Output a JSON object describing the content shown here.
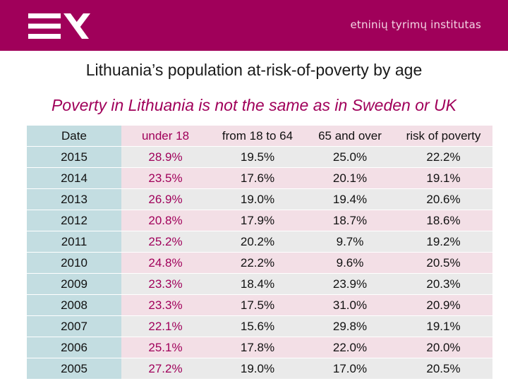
{
  "header": {
    "logo_icon": "ett-logo-icon",
    "brand_text": "etninių tyrimų institutas",
    "bg_color": "#a0005a"
  },
  "title": "Lithuania’s population at-risk-of-poverty by age",
  "subtitle": "Poverty in Lithuania is not the same as in Sweden or UK",
  "table": {
    "columns": [
      "Date",
      "under 18",
      "from 18 to 64",
      "65 and over",
      "risk of poverty"
    ],
    "rows": [
      [
        "2015",
        "28.9%",
        "19.5%",
        "25.0%",
        "22.2%"
      ],
      [
        "2014",
        "23.5%",
        "17.6%",
        "20.1%",
        "19.1%"
      ],
      [
        "2013",
        "26.9%",
        "19.0%",
        "19.4%",
        "20.6%"
      ],
      [
        "2012",
        "20.8%",
        "17.9%",
        "18.7%",
        "18.6%"
      ],
      [
        "2011",
        "25.2%",
        "20.2%",
        "9.7%",
        "19.2%"
      ],
      [
        "2010",
        "24.8%",
        "22.2%",
        "9.6%",
        "20.5%"
      ],
      [
        "2009",
        "23.3%",
        "18.4%",
        "23.9%",
        "20.3%"
      ],
      [
        "2008",
        "23.3%",
        "17.5%",
        "31.0%",
        "20.9%"
      ],
      [
        "2007",
        "22.1%",
        "15.6%",
        "29.8%",
        "19.1%"
      ],
      [
        "2006",
        "25.1%",
        "17.8%",
        "22.0%",
        "20.0%"
      ],
      [
        "2005",
        "27.2%",
        "19.0%",
        "17.0%",
        "20.5%"
      ]
    ]
  }
}
